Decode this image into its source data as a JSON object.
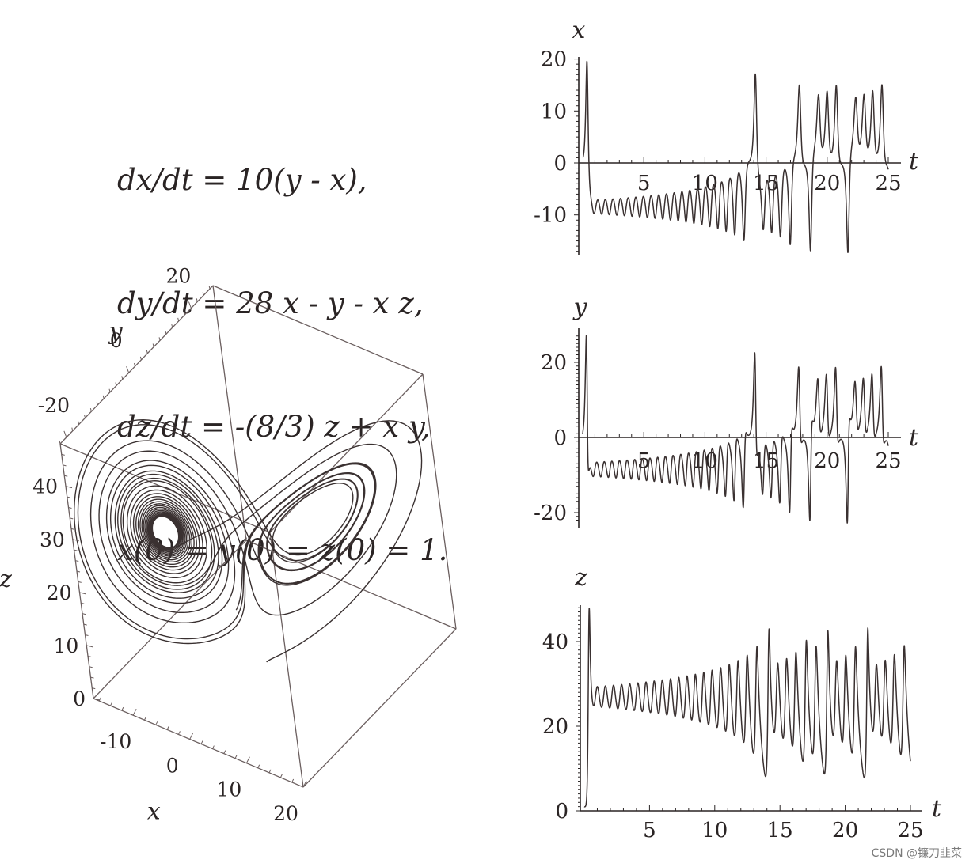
{
  "equations": [
    "dx/dt = 10(y - x),",
    "dy/dt = 28 x - y - x z,",
    "dz/dt = -(8/3) z + x y,",
    "x(0) = y(0) = z(0) = 1."
  ],
  "watermark": "CSDN @镰刀韭菜",
  "colors": {
    "curve": "#3a3131",
    "axis": "#2a2424",
    "box": "#6b5f5f"
  },
  "chart_data": [
    {
      "type": "line",
      "panel": "x-vs-t",
      "xlabel": "t",
      "ylabel": "x",
      "xlim": [
        0,
        25
      ],
      "ylim": [
        -17,
        20
      ],
      "x_ticks": [
        5,
        10,
        15,
        20,
        25
      ],
      "y_ticks": [
        -10,
        0,
        10,
        20
      ],
      "x_tick_labels": [
        "5",
        "10",
        "15",
        "20",
        "25"
      ],
      "y_tick_labels": [
        "-10",
        "0",
        "10",
        "20"
      ],
      "series": [
        {
          "x_range": [
            0,
            25
          ],
          "description_free": true,
          "equation": "lorenz",
          "component": "x"
        }
      ]
    },
    {
      "type": "line",
      "panel": "y-vs-t",
      "xlabel": "t",
      "ylabel": "y",
      "xlim": [
        0,
        25
      ],
      "ylim": [
        -22,
        27
      ],
      "x_ticks": [
        5,
        10,
        15,
        20,
        25
      ],
      "y_ticks": [
        -20,
        0,
        20
      ],
      "x_tick_labels": [
        "5",
        "10",
        "15",
        "20",
        "25"
      ],
      "y_tick_labels": [
        "-20",
        "0",
        "20"
      ],
      "series": [
        {
          "x_range": [
            0,
            25
          ],
          "equation": "lorenz",
          "component": "y"
        }
      ]
    },
    {
      "type": "line",
      "panel": "z-vs-t",
      "xlabel": "t",
      "ylabel": "z",
      "xlim": [
        0,
        25
      ],
      "ylim": [
        0,
        48
      ],
      "x_ticks": [
        5,
        10,
        15,
        20,
        25
      ],
      "y_ticks": [
        0,
        20,
        40
      ],
      "x_tick_labels": [
        "5",
        "10",
        "15",
        "20",
        "25"
      ],
      "y_tick_labels": [
        "0",
        "20",
        "40"
      ],
      "series": [
        {
          "x_range": [
            0,
            25
          ],
          "equation": "lorenz",
          "component": "z"
        }
      ]
    },
    {
      "type": "line",
      "panel": "phase-3d",
      "xlabel": "x",
      "ylabel": "y",
      "zlabel": "z",
      "x_tick_labels": [
        "-10",
        "0",
        "10",
        "20"
      ],
      "y_tick_labels": [
        "-20",
        "0",
        "20"
      ],
      "z_tick_labels": [
        "0",
        "10",
        "20",
        "30",
        "40"
      ],
      "xlim": [
        -17,
        20
      ],
      "ylim": [
        -22,
        27
      ],
      "zlim": [
        0,
        48
      ],
      "series": [
        {
          "equation": "lorenz",
          "component": "xyz"
        }
      ]
    }
  ]
}
